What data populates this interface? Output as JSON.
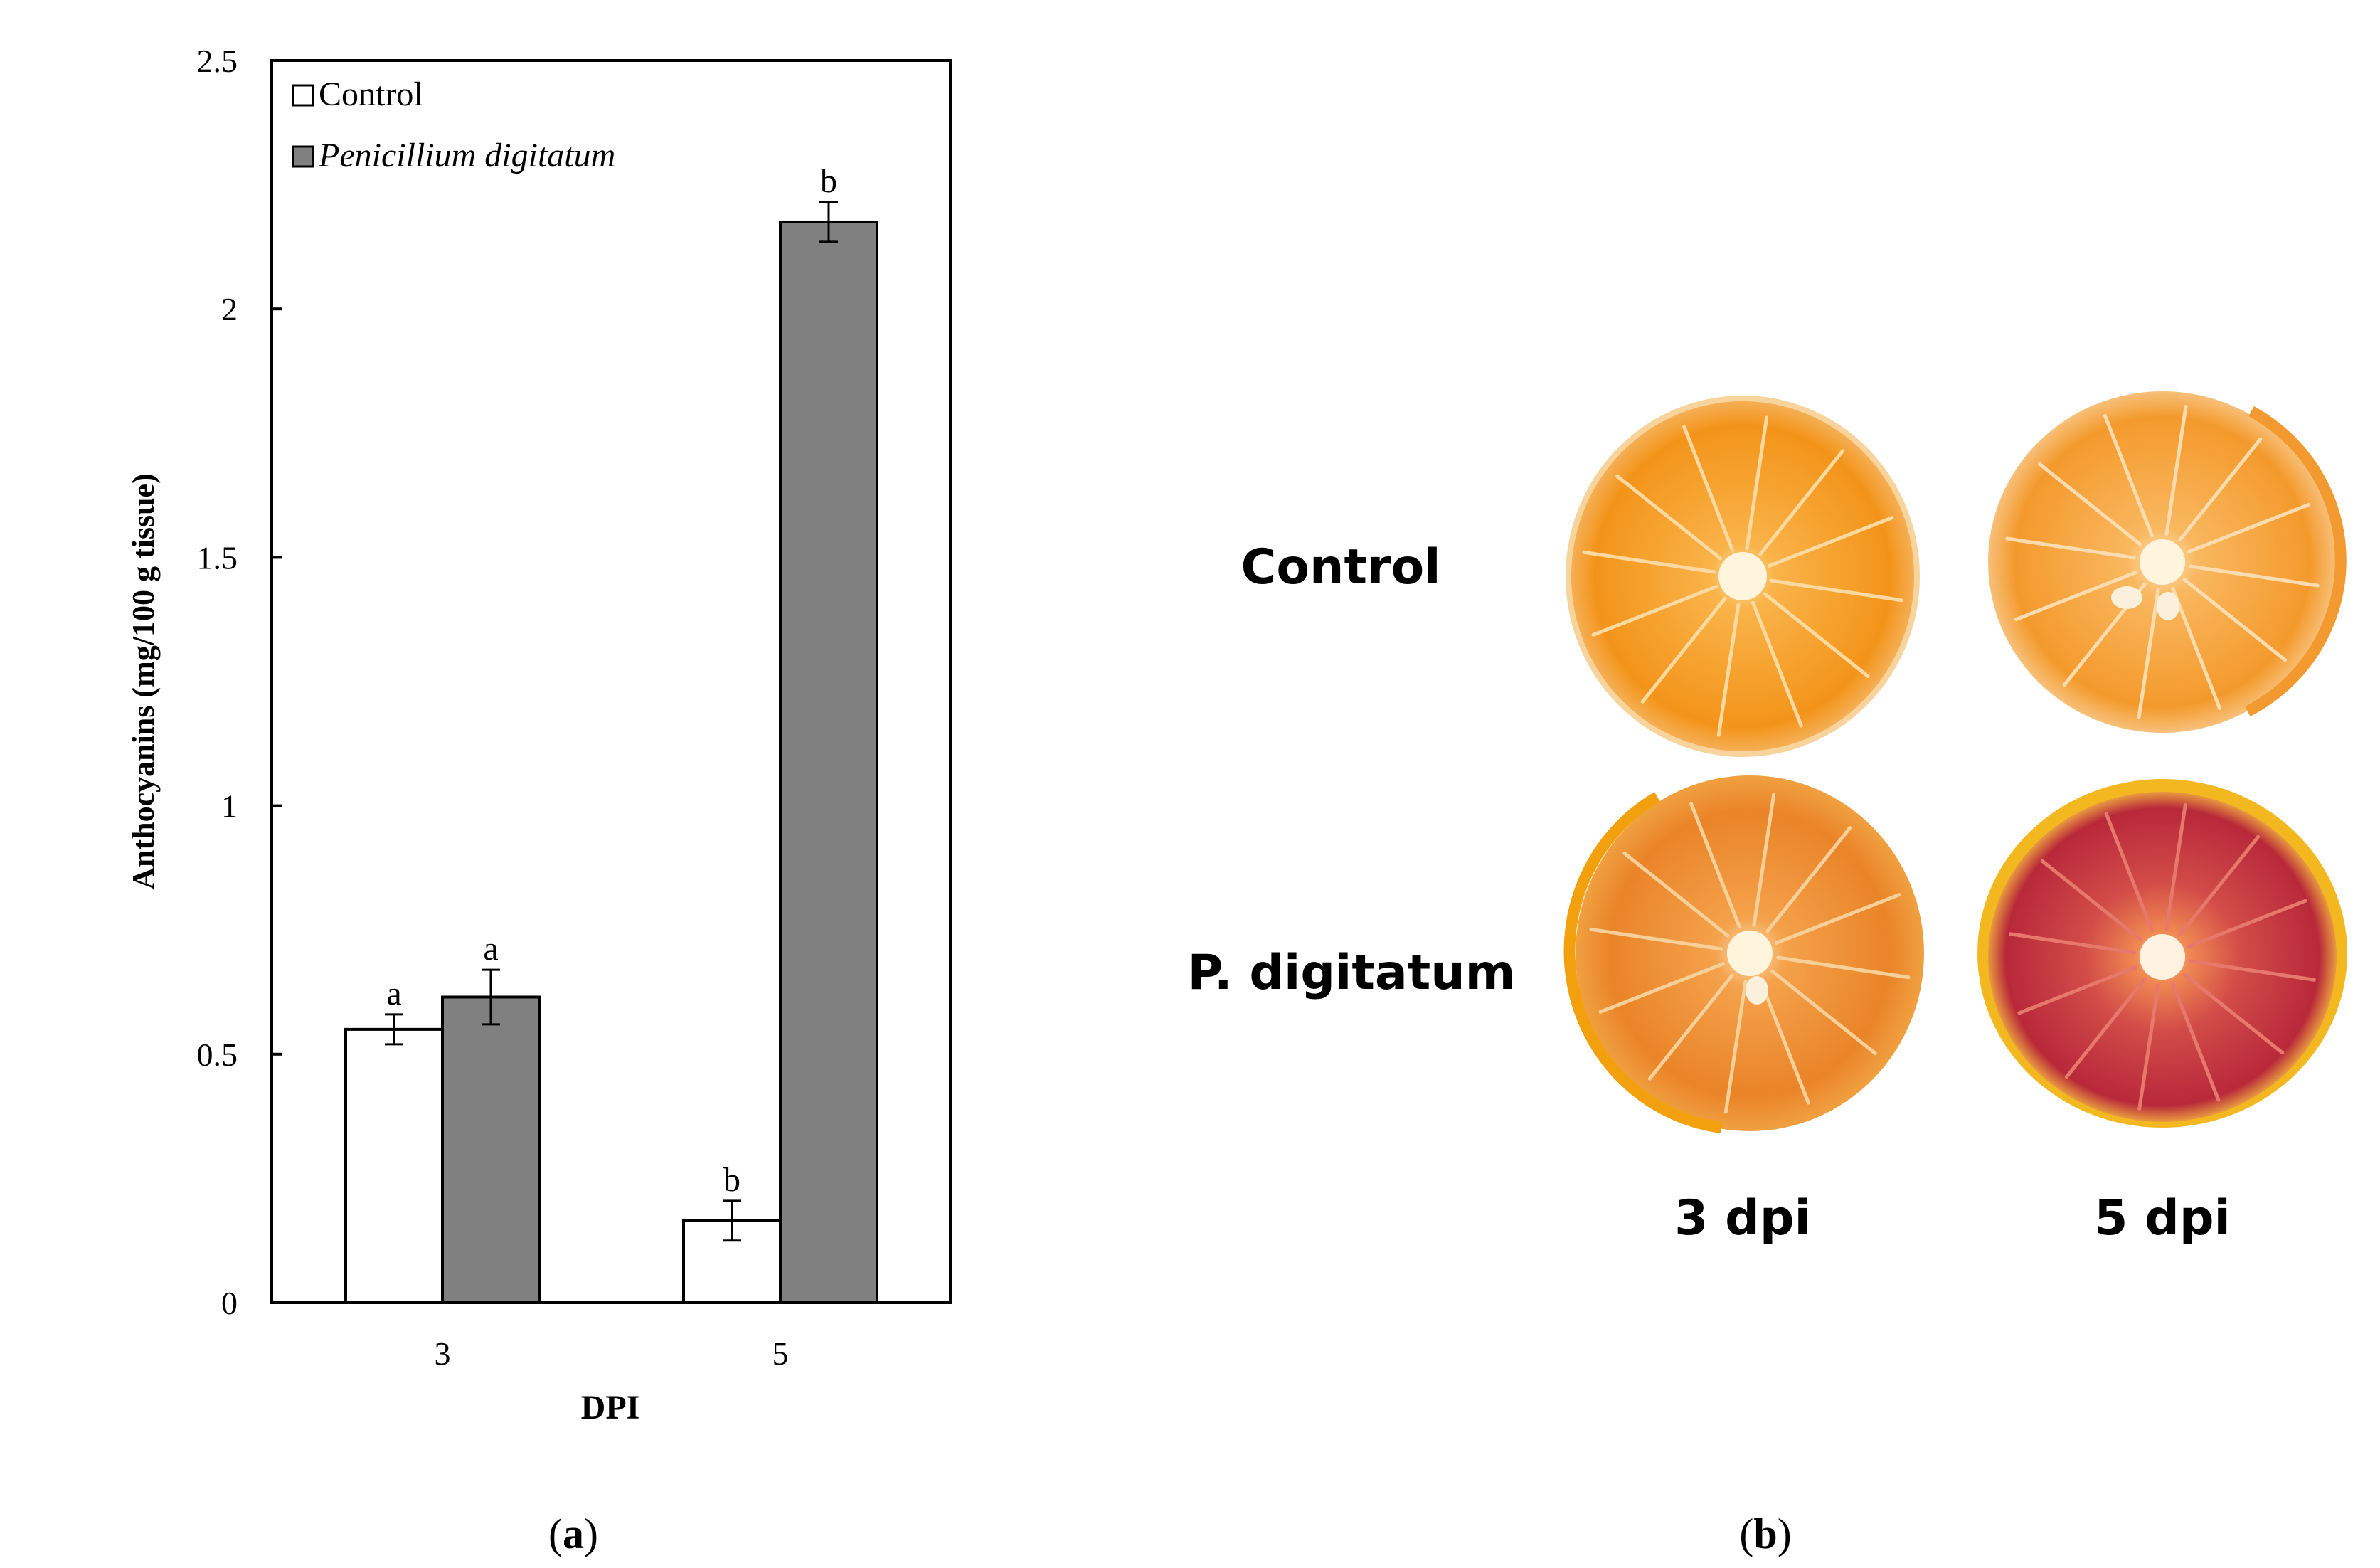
{
  "chart_data": {
    "type": "bar",
    "panel_label": "a",
    "xlabel": "DPI",
    "ylabel": "Anthocyanins (mg/100 g tissue)",
    "ylim": [
      0,
      2.5
    ],
    "y_ticks": [
      "0",
      "0.5",
      "1",
      "1.5",
      "2",
      "2.5"
    ],
    "y_tick_values": [
      0,
      0.5,
      1,
      1.5,
      2,
      2.5
    ],
    "categories": [
      "3",
      "5"
    ],
    "legend_position": "top-left",
    "series": [
      {
        "name": "Control",
        "italic": false,
        "color": "#ffffff",
        "values": [
          0.55,
          0.165
        ],
        "errors": [
          0.03,
          0.04
        ],
        "letters": [
          "a",
          "b"
        ]
      },
      {
        "name": "Penicillium digitatum",
        "italic": true,
        "color": "#808080",
        "values": [
          0.615,
          2.175
        ],
        "errors": [
          0.055,
          0.04
        ],
        "letters": [
          "a",
          "b"
        ]
      }
    ]
  },
  "photo_panel": {
    "panel_label": "b",
    "row_labels": [
      "Control",
      "P. digitatum"
    ],
    "column_labels": [
      "3 dpi",
      "5 dpi"
    ],
    "images": [
      {
        "name": "orange-control-3dpi",
        "color": "#f59a1e"
      },
      {
        "name": "orange-control-5dpi",
        "color": "#f7a340"
      },
      {
        "name": "orange-pdigitatum-3dpi",
        "color": "#ef8a25"
      },
      {
        "name": "orange-pdigitatum-5dpi",
        "color": "#c83a42"
      }
    ]
  }
}
